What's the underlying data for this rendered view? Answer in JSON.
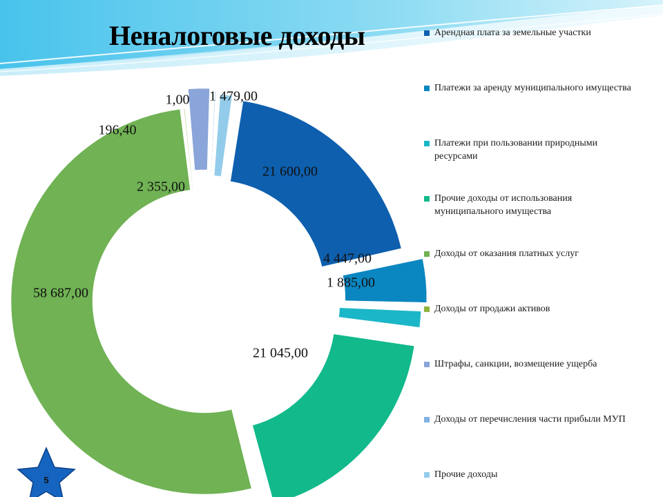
{
  "slide": {
    "page_number": "5"
  },
  "chart_data": {
    "type": "doughnut",
    "title": "Неналоговые доходы",
    "legend_position": "right",
    "series": [
      {
        "name": "Арендная плата за земельные участки",
        "value": 21600.0,
        "label": "21 600,00",
        "color": "#0e5fae"
      },
      {
        "name": "Платежи за аренду муниципального имущества",
        "value": 4447.0,
        "label": "4 447,00",
        "color": "#0a86c0"
      },
      {
        "name": "Платежи при пользовании природными ресурсами",
        "value": 1885.0,
        "label": "1 885,00",
        "color": "#1bb6c7"
      },
      {
        "name": "Прочие доходы от использования муниципального имущества",
        "value": 21045.0,
        "label": "21 045,00",
        "color": "#11b98b"
      },
      {
        "name": "Доходы от оказания платных услуг",
        "value": 58687.0,
        "label": "58 687,00",
        "color": "#70b254"
      },
      {
        "name": "Доходы от продажи активов",
        "value": 196.4,
        "label": "196,40",
        "color": "#90b33c"
      },
      {
        "name": "Штрафы, санкции, возмещение ущерба",
        "value": 2355.0,
        "label": "2 355,00",
        "color": "#8aa5d9"
      },
      {
        "name": "Доходы от перечисления части прибыли МУП",
        "value": 1.0,
        "label": "1,00",
        "color": "#7fb2e1"
      },
      {
        "name": "Прочие доходы",
        "value": 1479.0,
        "label": "1 479,00",
        "color": "#93ccea"
      }
    ]
  }
}
